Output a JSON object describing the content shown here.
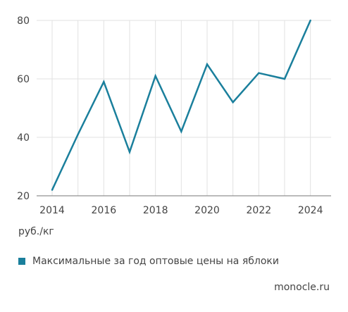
{
  "chart_data": {
    "type": "line",
    "x": [
      2014,
      2015,
      2016,
      2017,
      2018,
      2019,
      2020,
      2021,
      2022,
      2023,
      2024
    ],
    "series": [
      {
        "name": "Максимальные за год оптовые цены на яблоки",
        "values": [
          22,
          41,
          59,
          35,
          61,
          42,
          65,
          52,
          62,
          60,
          80
        ]
      }
    ],
    "xticks": [
      "2014",
      "2016",
      "2018",
      "2020",
      "2022",
      "2024"
    ],
    "yticks": [
      "20",
      "40",
      "60",
      "80"
    ],
    "ylim": [
      20,
      80
    ],
    "xlim": [
      2013.4,
      2024.8
    ],
    "grid": true,
    "unit_label": "руб./кг",
    "line_color": "#1a7f9c",
    "legend_position": "bottom-left"
  },
  "source": "monocle.ru"
}
